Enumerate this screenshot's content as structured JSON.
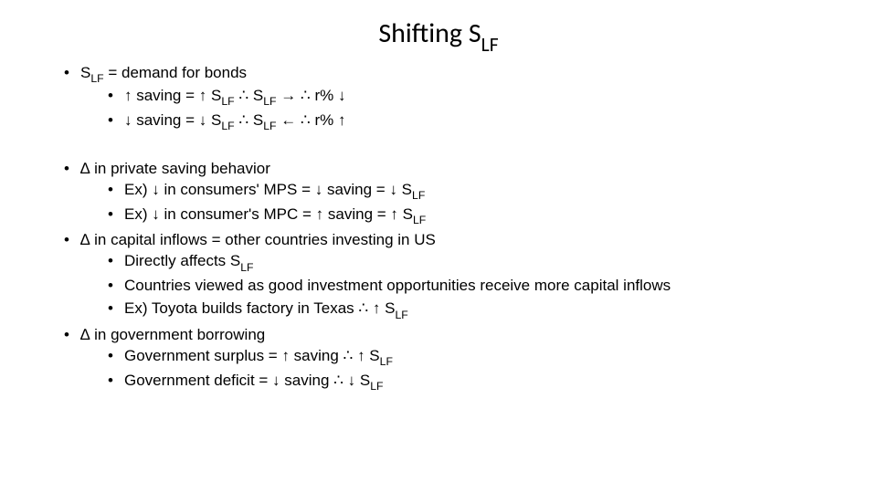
{
  "colors": {
    "background": "#ffffff",
    "text": "#000000"
  },
  "fonts": {
    "title_family": "Calibri Light",
    "body_family": "Arial",
    "title_size_pt": 30,
    "body_size_pt": 17
  },
  "title_parts": {
    "pre": "Shifting S",
    "sub": "LF"
  },
  "bullets": {
    "b1": {
      "pre": "S",
      "sub": "LF",
      "post": " = demand for bonds"
    },
    "b1a": {
      "t1": "↑ saving = ↑ S",
      "s1": "LF",
      "t2": " ∴ S",
      "s2": "LF",
      "t3": " → ∴ r% ↓"
    },
    "b1b": {
      "t1": "↓ saving = ↓ S",
      "s1": "LF",
      "t2": " ∴ S",
      "s2": "LF",
      "t3": " ← ∴ r% ↑"
    },
    "b2": "∆ in private saving behavior",
    "b2a": {
      "t1": "Ex) ↓ in consumers' MPS = ↓ saving = ↓ S",
      "s1": "LF"
    },
    "b2b": {
      "t1": "Ex) ↓ in consumer's MPC = ↑ saving = ↑ S",
      "s1": "LF"
    },
    "b3": "∆ in capital inflows = other countries investing in US",
    "b3a": {
      "t1": "Directly affects S",
      "s1": "LF"
    },
    "b3b": "Countries viewed as good investment opportunities receive more capital inflows",
    "b3c": {
      "t1": "Ex) Toyota builds factory in Texas ∴ ↑ S",
      "s1": "LF"
    },
    "b4": "∆  in government borrowing",
    "b4a": {
      "t1": "Government surplus = ↑ saving ∴ ↑ S",
      "s1": "LF"
    },
    "b4b": {
      "t1": "Government deficit = ↓ saving ∴ ↓ S",
      "s1": "LF"
    }
  }
}
